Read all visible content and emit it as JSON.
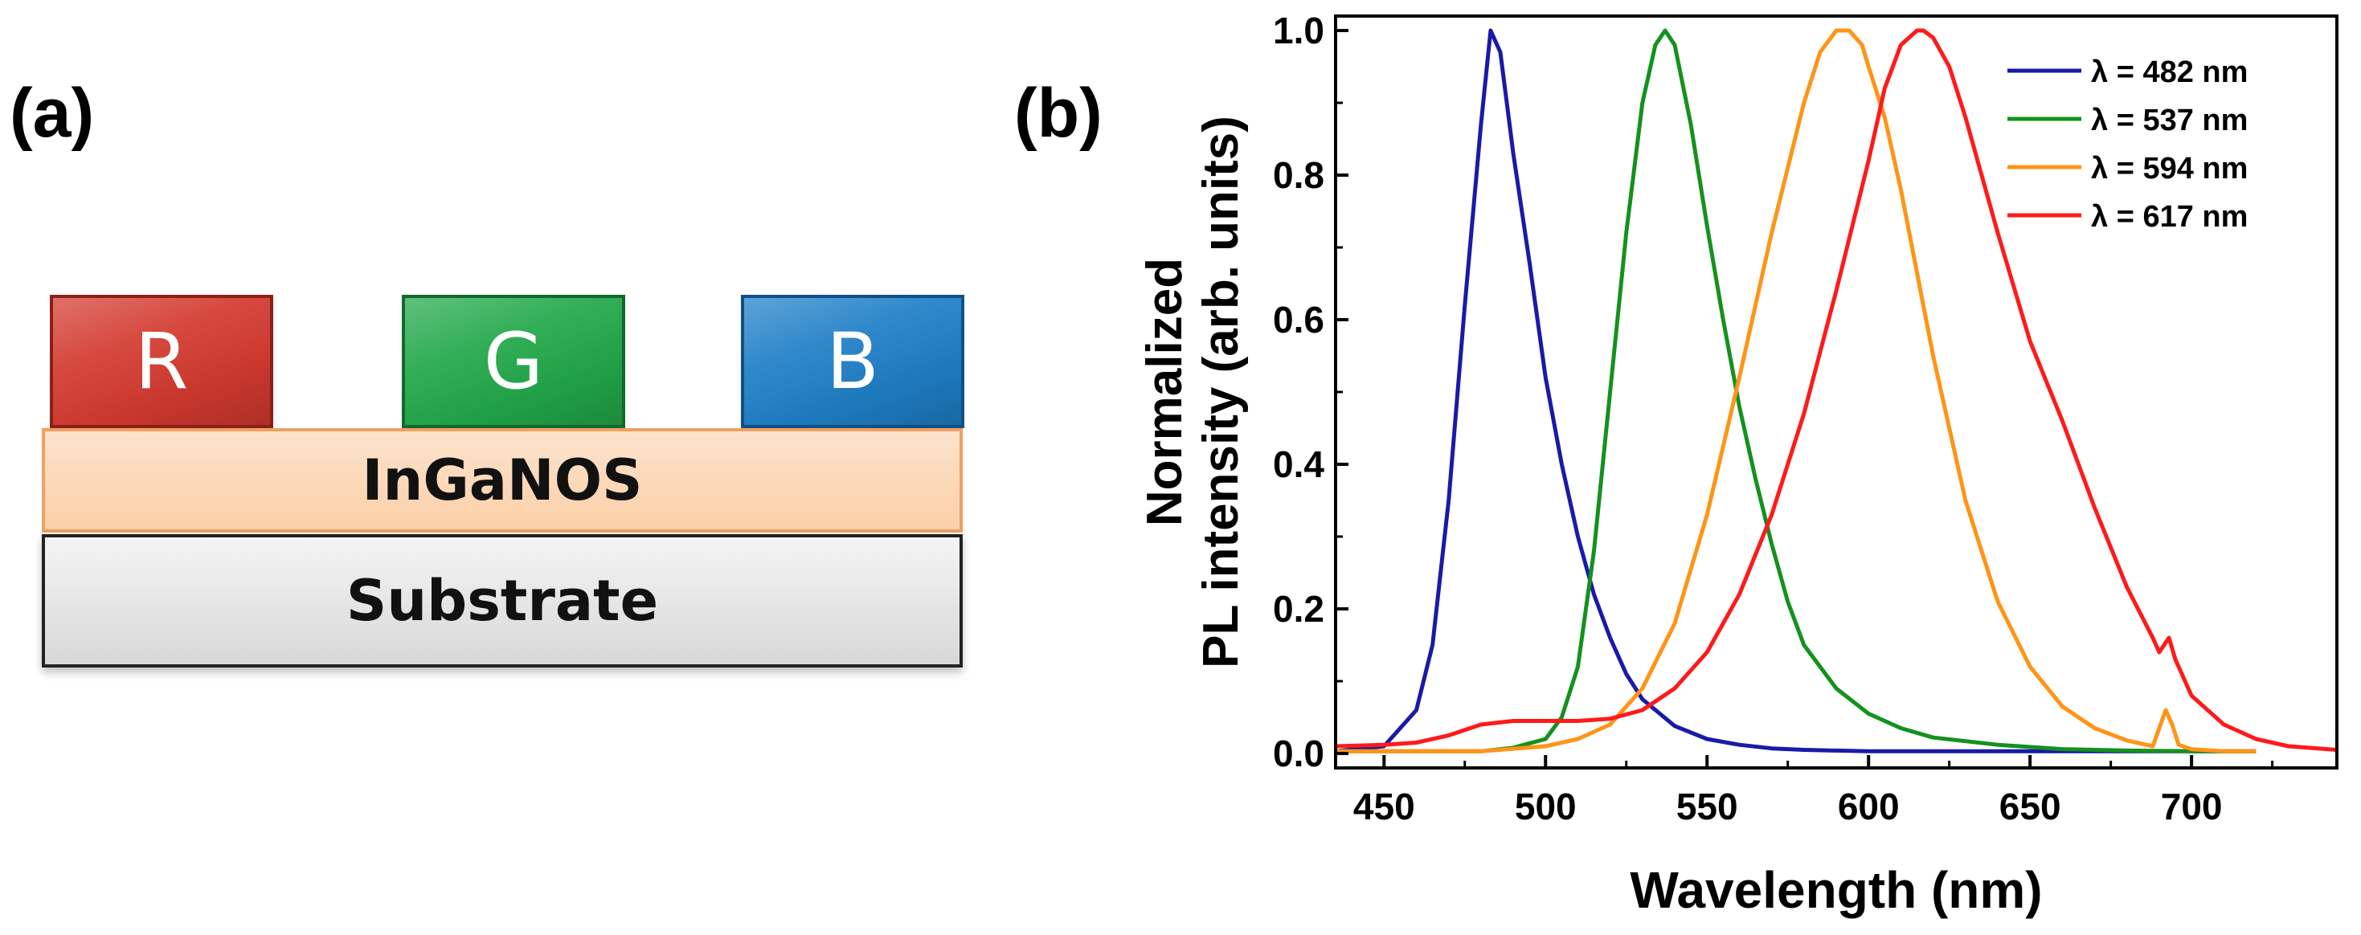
{
  "panel_a": {
    "label": "(a)",
    "pixels": [
      {
        "text": "R",
        "color": "#d33a2f"
      },
      {
        "text": "G",
        "color": "#22a84a"
      },
      {
        "text": "B",
        "color": "#1f7fc6"
      }
    ],
    "layers": {
      "active": "InGaNOS",
      "substrate": "Substrate"
    }
  },
  "panel_b": {
    "label": "(b)"
  },
  "chart_data": {
    "type": "line",
    "title": "",
    "xlabel": "Wavelength (nm)",
    "ylabel_line1": "Normalized",
    "ylabel_line2": "PL intensity (arb. units)",
    "xlim": [
      435,
      745
    ],
    "ylim": [
      -0.02,
      1.02
    ],
    "xticks": [
      450,
      500,
      550,
      600,
      650,
      700
    ],
    "yticks": [
      0.0,
      0.2,
      0.4,
      0.6,
      0.8,
      1.0
    ],
    "ytick_labels": [
      "0.0",
      "0.2",
      "0.4",
      "0.6",
      "0.8",
      "1.0"
    ],
    "grid": false,
    "legend_position": "top-right",
    "series": [
      {
        "name": "λ = 482 nm",
        "color": "#1a1aa8",
        "x": [
          435,
          450,
          460,
          465,
          470,
          475,
          480,
          483,
          486,
          490,
          495,
          500,
          505,
          510,
          515,
          520,
          525,
          530,
          540,
          550,
          560,
          570,
          580,
          600,
          650,
          700,
          720
        ],
        "y": [
          0.003,
          0.01,
          0.06,
          0.15,
          0.35,
          0.62,
          0.87,
          1.0,
          0.97,
          0.83,
          0.68,
          0.52,
          0.4,
          0.3,
          0.22,
          0.16,
          0.11,
          0.075,
          0.038,
          0.02,
          0.012,
          0.007,
          0.005,
          0.003,
          0.003,
          0.003,
          0.003
        ]
      },
      {
        "name": "λ = 537 nm",
        "color": "#14911e",
        "x": [
          435,
          480,
          490,
          500,
          505,
          510,
          515,
          520,
          525,
          530,
          534,
          537,
          540,
          545,
          550,
          555,
          560,
          565,
          570,
          575,
          580,
          590,
          600,
          610,
          620,
          640,
          660,
          680,
          700,
          720
        ],
        "y": [
          0.003,
          0.003,
          0.008,
          0.02,
          0.05,
          0.12,
          0.28,
          0.5,
          0.72,
          0.9,
          0.98,
          1.0,
          0.98,
          0.87,
          0.73,
          0.6,
          0.48,
          0.38,
          0.29,
          0.21,
          0.15,
          0.09,
          0.055,
          0.035,
          0.022,
          0.012,
          0.006,
          0.004,
          0.003,
          0.003
        ]
      },
      {
        "name": "λ = 594 nm",
        "color": "#ff9417",
        "x": [
          435,
          480,
          500,
          510,
          520,
          530,
          540,
          550,
          560,
          570,
          580,
          585,
          590,
          594,
          598,
          600,
          605,
          610,
          620,
          630,
          640,
          650,
          660,
          670,
          680,
          688,
          692,
          694,
          696,
          700,
          710,
          720
        ],
        "y": [
          0.003,
          0.003,
          0.01,
          0.02,
          0.04,
          0.09,
          0.18,
          0.33,
          0.52,
          0.72,
          0.9,
          0.97,
          1.0,
          1.0,
          0.98,
          0.95,
          0.88,
          0.78,
          0.55,
          0.35,
          0.21,
          0.12,
          0.065,
          0.035,
          0.018,
          0.01,
          0.06,
          0.04,
          0.012,
          0.006,
          0.003,
          0.003
        ]
      },
      {
        "name": "λ = 617 nm",
        "color": "#ff1a1a",
        "x": [
          435,
          450,
          460,
          470,
          480,
          490,
          500,
          510,
          520,
          530,
          540,
          550,
          560,
          570,
          580,
          590,
          600,
          605,
          610,
          615,
          617,
          620,
          625,
          630,
          640,
          650,
          660,
          670,
          680,
          688,
          690,
          693,
          695,
          700,
          710,
          720,
          730,
          745
        ],
        "y": [
          0.01,
          0.012,
          0.015,
          0.025,
          0.04,
          0.045,
          0.045,
          0.045,
          0.048,
          0.06,
          0.09,
          0.14,
          0.22,
          0.33,
          0.47,
          0.64,
          0.82,
          0.92,
          0.98,
          1.0,
          1.0,
          0.99,
          0.95,
          0.88,
          0.72,
          0.57,
          0.46,
          0.34,
          0.23,
          0.16,
          0.14,
          0.16,
          0.13,
          0.08,
          0.04,
          0.02,
          0.01,
          0.005
        ]
      }
    ]
  }
}
